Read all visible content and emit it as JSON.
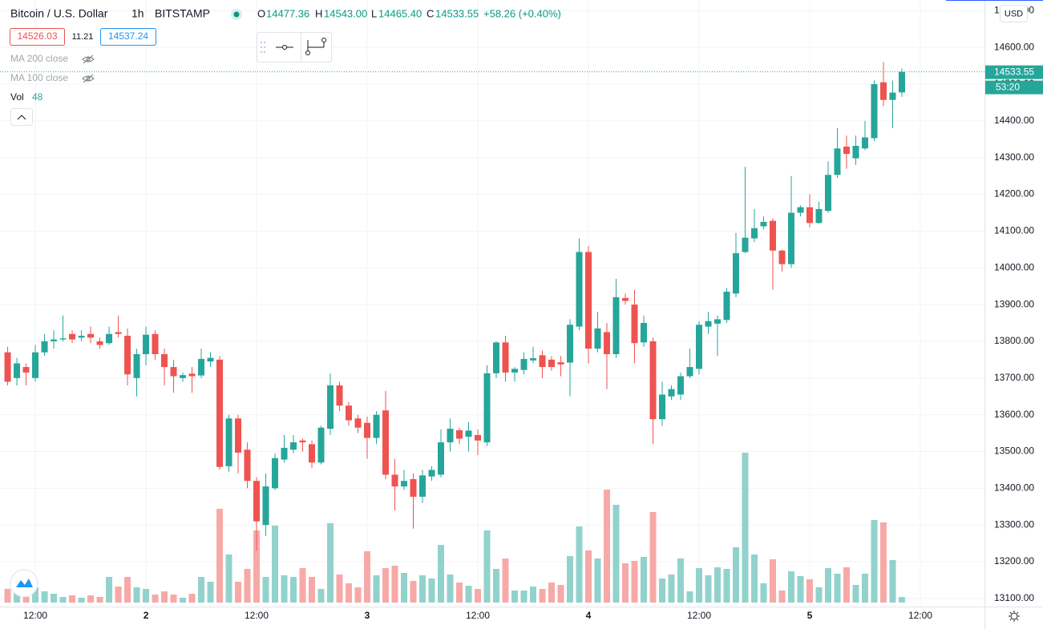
{
  "header": {
    "symbol": "Bitcoin / U.S. Dollar",
    "interval": "1h",
    "exchange": "BITSTAMP",
    "open_label": "O",
    "high_label": "H",
    "high": "14543.00",
    "low_label": "L",
    "low": "14465.40",
    "close_label": "C",
    "change": "+58.26 (+0.40%)",
    "bid": "14526.03",
    "spread": "11.21",
    "ask": "14537.24",
    "indicators": [
      "MA 200 close",
      "MA 100 close"
    ],
    "volume_label": "Vol",
    "currency": "USD",
    "countdown": "53:20"
  },
  "chart_data": {
    "type": "candlestick",
    "up_color": "#26a69a",
    "down_color": "#ef5350",
    "volume_up_color": "#92d2cc",
    "volume_down_color": "#f7a9a7",
    "grid": true,
    "xlim": [
      -0.83,
      105.96
    ],
    "xticks": [
      {
        "value": 3,
        "label": "12:00"
      },
      {
        "value": 15,
        "label": "2"
      },
      {
        "value": 27,
        "label": "12:00"
      },
      {
        "value": 39,
        "label": "3"
      },
      {
        "value": 51,
        "label": "12:00"
      },
      {
        "value": 63,
        "label": "4"
      },
      {
        "value": 75,
        "label": "12:00"
      },
      {
        "value": 87,
        "label": "5"
      },
      {
        "value": 99,
        "label": "12:00"
      }
    ],
    "ylim": [
      13078,
      14729
    ],
    "yticks": [
      {
        "value": 13100,
        "label": "13100.00"
      },
      {
        "value": 13200,
        "label": "13200.00"
      },
      {
        "value": 13300,
        "label": "13300.00"
      },
      {
        "value": 13400,
        "label": "13400.00"
      },
      {
        "value": 13500,
        "label": "13500.00"
      },
      {
        "value": 13600,
        "label": "13600.00"
      },
      {
        "value": 13700,
        "label": "13700.00"
      },
      {
        "value": 13800,
        "label": "13800.00"
      },
      {
        "value": 13900,
        "label": "13900.00"
      },
      {
        "value": 14000,
        "label": "14000.00"
      },
      {
        "value": 14100,
        "label": "14100.00"
      },
      {
        "value": 14200,
        "label": "14200.00"
      },
      {
        "value": 14300,
        "label": "14300.00"
      },
      {
        "value": 14400,
        "label": "14400.00"
      },
      {
        "value": 14500,
        "label": "14500.00"
      },
      {
        "value": 14600,
        "label": "14600.00"
      },
      {
        "value": 14700,
        "label": "14700.00"
      }
    ],
    "open": [
      13770,
      13700,
      13730,
      13700,
      13770,
      13800,
      13805,
      13820,
      13810,
      13820,
      13800,
      13795,
      13825,
      13815,
      13700,
      13765,
      13820,
      13765,
      13730,
      13700,
      13712,
      13707,
      13745,
      13750,
      13460,
      13590,
      13505,
      13420,
      13300,
      13400,
      13478,
      13505,
      13530,
      13520,
      13470,
      13562,
      13680,
      13625,
      13590,
      13578,
      13537,
      13612,
      13437,
      13405,
      13425,
      13377,
      13432,
      13437,
      13525,
      13558,
      13540,
      13545,
      13525,
      13713,
      13797,
      13715,
      13722,
      13748,
      13762,
      13750,
      13743,
      13742,
      13840,
      14043,
      13780,
      13825,
      13765,
      13918,
      13900,
      13797,
      13800,
      13588,
      13650,
      13655,
      13705,
      13725,
      13840,
      13848,
      13858,
      13930,
      14043,
      14080,
      14113,
      14128,
      14047,
      14010,
      14150,
      14165,
      14122,
      14155,
      14253,
      14330,
      14298,
      14325,
      14353,
      14505,
      14457,
      14477.36
    ],
    "high": [
      13785,
      13755,
      13740,
      13790,
      13820,
      13830,
      13870,
      13830,
      13830,
      13840,
      13810,
      13840,
      13870,
      13835,
      13780,
      13840,
      13830,
      13780,
      13750,
      13715,
      13730,
      13780,
      13770,
      13760,
      13600,
      13600,
      13525,
      13430,
      13440,
      13495,
      13545,
      13545,
      13535,
      13530,
      13570,
      13712,
      13690,
      13635,
      13600,
      13595,
      13610,
      13665,
      13480,
      13450,
      13440,
      13450,
      13460,
      13560,
      13590,
      13565,
      13580,
      13560,
      13735,
      13800,
      13815,
      13730,
      13770,
      13785,
      13775,
      13760,
      13760,
      13860,
      14080,
      14060,
      13880,
      13850,
      13970,
      13930,
      13940,
      13870,
      13810,
      13690,
      13680,
      13715,
      13780,
      13855,
      13880,
      13870,
      13945,
      14095,
      14275,
      14160,
      14140,
      14135,
      14050,
      14250,
      14170,
      14200,
      14180,
      14290,
      14380,
      14360,
      14360,
      14400,
      14510,
      14560,
      14510,
      14543
    ],
    "low": [
      13680,
      13680,
      13680,
      13690,
      13760,
      13780,
      13800,
      13795,
      13800,
      13795,
      13780,
      13790,
      13810,
      13680,
      13650,
      13735,
      13750,
      13680,
      13660,
      13690,
      13660,
      13700,
      13730,
      13450,
      13445,
      13440,
      13400,
      13230,
      13270,
      13395,
      13470,
      13495,
      13500,
      13455,
      13465,
      13545,
      13610,
      13570,
      13550,
      13480,
      13520,
      13425,
      13340,
      13395,
      13290,
      13360,
      13420,
      13430,
      13500,
      13520,
      13500,
      13490,
      13515,
      13700,
      13690,
      13690,
      13710,
      13740,
      13700,
      13720,
      13705,
      13650,
      13830,
      13740,
      13770,
      13670,
      13755,
      13900,
      13740,
      13785,
      13520,
      13570,
      13640,
      13640,
      13700,
      13710,
      13820,
      13760,
      13850,
      13920,
      14040,
      14070,
      14105,
      13940,
      13990,
      14000,
      14140,
      14110,
      14120,
      14150,
      14245,
      14270,
      14280,
      14320,
      14345,
      14440,
      14380,
      14465.4
    ],
    "close": [
      13690,
      13740,
      13715,
      13770,
      13800,
      13805,
      13808,
      13805,
      13815,
      13810,
      13790,
      13820,
      13820,
      13710,
      13765,
      13818,
      13765,
      13730,
      13705,
      13708,
      13705,
      13752,
      13755,
      13458,
      13590,
      13497,
      13420,
      13310,
      13405,
      13482,
      13510,
      13525,
      13525,
      13470,
      13565,
      13680,
      13625,
      13585,
      13565,
      13537,
      13600,
      13437,
      13405,
      13420,
      13377,
      13435,
      13450,
      13525,
      13562,
      13535,
      13557,
      13530,
      13713,
      13797,
      13715,
      13725,
      13752,
      13754,
      13730,
      13730,
      13737,
      13845,
      14043,
      13780,
      13835,
      13765,
      13920,
      13910,
      13795,
      13850,
      13588,
      13655,
      13670,
      13705,
      13730,
      13845,
      13855,
      13860,
      13935,
      14040,
      14082,
      14108,
      14125,
      14047,
      14010,
      14150,
      14165,
      14122,
      14160,
      14253,
      14325,
      14310,
      14332,
      14355,
      14500,
      14457,
      14477,
      14533.55
    ],
    "volume": [
      120,
      84,
      50,
      133,
      98,
      77,
      49,
      63,
      42,
      63,
      49,
      224,
      140,
      224,
      133,
      119,
      70,
      98,
      70,
      42,
      77,
      224,
      182,
      819,
      420,
      182,
      294,
      630,
      224,
      672,
      238,
      224,
      301,
      224,
      119,
      693,
      245,
      168,
      133,
      448,
      238,
      301,
      322,
      259,
      189,
      238,
      210,
      504,
      245,
      175,
      147,
      119,
      630,
      294,
      385,
      105,
      105,
      140,
      119,
      175,
      154,
      406,
      665,
      455,
      385,
      987,
      854,
      343,
      364,
      399,
      791,
      210,
      245,
      385,
      98,
      301,
      238,
      308,
      294,
      483,
      1309,
      420,
      168,
      378,
      105,
      273,
      231,
      203,
      133,
      301,
      252,
      308,
      154,
      252,
      721,
      700,
      371,
      48
    ]
  }
}
